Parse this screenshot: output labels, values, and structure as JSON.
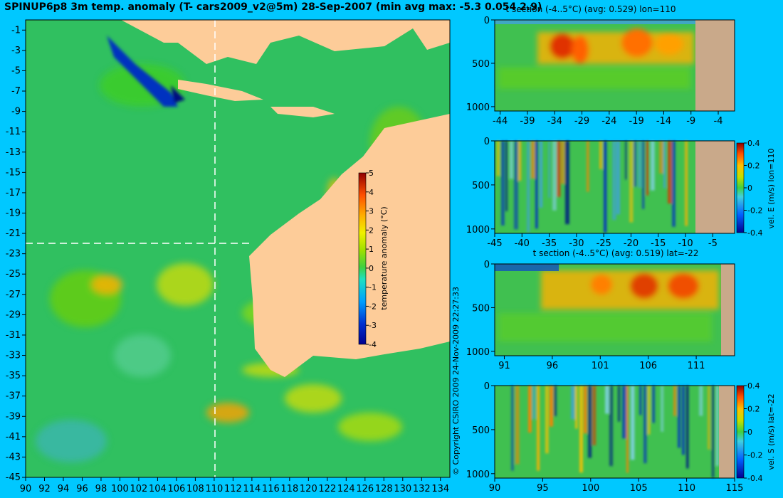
{
  "main_title": "SPINUP6p8 3m temp. anomaly (T- cars2009_v2@5m) 28-Sep-2007 (min avg max: -5.3 0.054 2.9)",
  "copyright": "© Copyright CSIRO 2009  24-Nov-2009 22:27:33",
  "colors": {
    "background": "#00c8ff",
    "land": "#fdcc99",
    "land_section": "#c9a98a"
  },
  "chart_data": [
    {
      "type": "heatmap",
      "name": "map",
      "title": "SPINUP6p8 3m temp. anomaly (T- cars2009_v2@5m) 28-Sep-2007 (min avg max: -5.3 0.054 2.9)",
      "x_ticks": [
        "90",
        "92",
        "94",
        "96",
        "98",
        "100",
        "102",
        "104",
        "106",
        "108",
        "110",
        "112",
        "114",
        "116",
        "118",
        "120",
        "122",
        "124",
        "126",
        "128",
        "130",
        "132",
        "134"
      ],
      "y_ticks": [
        "-1",
        "-3",
        "-5",
        "-7",
        "-9",
        "-11",
        "-13",
        "-15",
        "-17",
        "-19",
        "-21",
        "-23",
        "-25",
        "-27",
        "-29",
        "-31",
        "-33",
        "-35",
        "-37",
        "-39",
        "-41",
        "-43",
        "-45"
      ],
      "xlim": [
        90,
        135
      ],
      "ylim": [
        -45,
        0
      ],
      "colorbar": {
        "label": "temperature anomaly (°C)",
        "ticks": [
          "5",
          "4",
          "3",
          "2",
          "1",
          "0",
          "-1",
          "-2",
          "-3",
          "-4"
        ],
        "range": [
          -4,
          5
        ]
      },
      "section_lines": {
        "lon": 110,
        "lat": -22
      },
      "min": -5.3,
      "avg": 0.054,
      "max": 2.9
    },
    {
      "type": "heatmap",
      "name": "t-section-lon",
      "title": "t section (-4..5°C) (avg: 0.529) lon=110",
      "x_ticks": [
        "-44",
        "-39",
        "-34",
        "-29",
        "-24",
        "-19",
        "-14",
        "-9",
        "-4"
      ],
      "y_ticks": [
        "0",
        "500",
        "1000"
      ],
      "xlim": [
        -45,
        -1
      ],
      "ylim": [
        1050,
        0
      ],
      "avg": 0.529
    },
    {
      "type": "heatmap",
      "name": "vel-e-section",
      "title": "",
      "x_ticks": [
        "-45",
        "-40",
        "-35",
        "-30",
        "-25",
        "-20",
        "-15",
        "-10",
        "-5"
      ],
      "y_ticks": [
        "0",
        "500",
        "1000"
      ],
      "xlim": [
        -45,
        -1
      ],
      "ylim": [
        1050,
        0
      ],
      "colorbar": {
        "label": "vel. E (m/s) lon=110",
        "ticks": [
          "0.4",
          "0.2",
          "0",
          "-0.2",
          "-0.4"
        ],
        "range": [
          -0.4,
          0.4
        ]
      }
    },
    {
      "type": "heatmap",
      "name": "t-section-lat",
      "title": "t section (-4..5°C) (avg: 0.519) lat=-22",
      "x_ticks": [
        "91",
        "96",
        "101",
        "106",
        "111"
      ],
      "y_ticks": [
        "0",
        "500",
        "1000"
      ],
      "xlim": [
        90,
        115
      ],
      "ylim": [
        1050,
        0
      ],
      "avg": 0.519
    },
    {
      "type": "heatmap",
      "name": "vel-s-section",
      "title": "",
      "x_ticks": [
        "90",
        "95",
        "100",
        "105",
        "110",
        "115"
      ],
      "y_ticks": [
        "0",
        "500",
        "1000"
      ],
      "xlim": [
        90,
        115
      ],
      "ylim": [
        1050,
        0
      ],
      "colorbar": {
        "label": "vel. S (m/s) lat=-22",
        "ticks": [
          "0.4",
          "0.2",
          "0",
          "-0.2",
          "-0.4"
        ],
        "range": [
          -0.4,
          0.4
        ]
      }
    }
  ]
}
